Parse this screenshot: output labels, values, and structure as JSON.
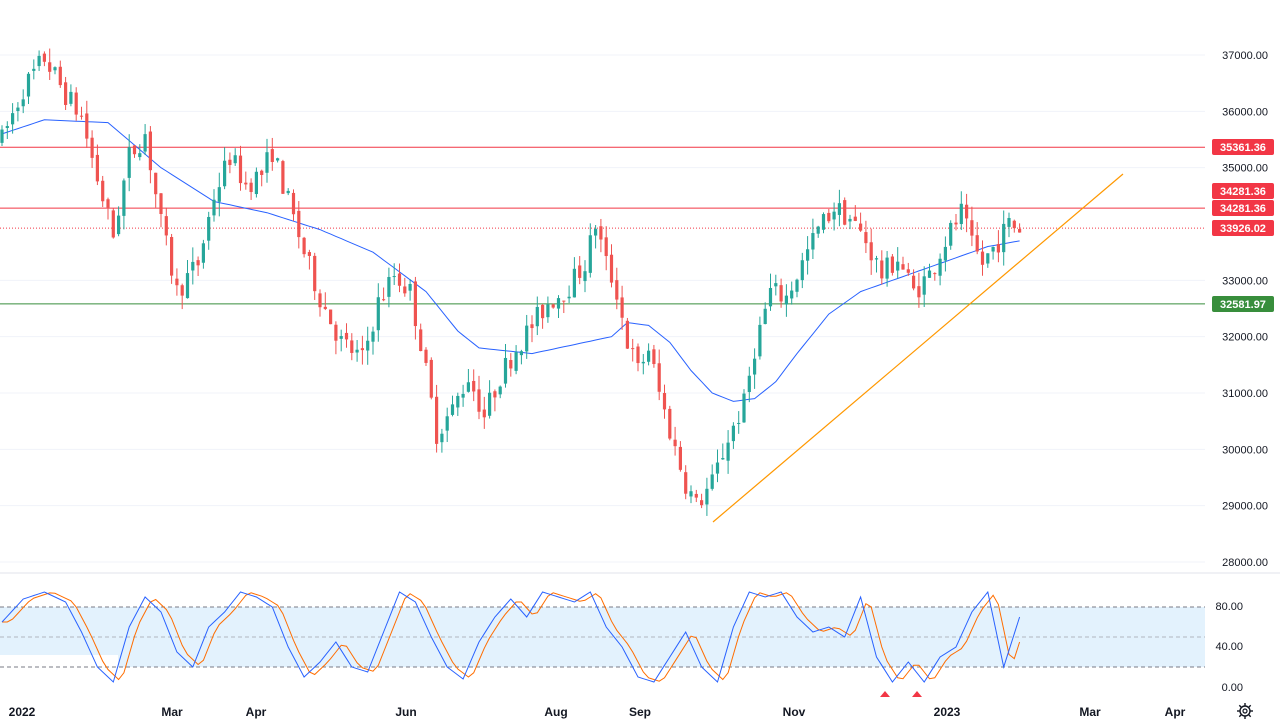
{
  "chart_data": {
    "type": "candlestick",
    "instrument_note": "daily price chart with 50-day moving average, trend lines and stochastic oscillator",
    "colors": {
      "up": "#26a69a",
      "down": "#ef5350",
      "ma": "#2962ff",
      "trendline": "#ff9800",
      "resistance": "#f23645",
      "support": "#388e3c",
      "stoch_k": "#2962ff",
      "stoch_d": "#ff6d00",
      "stoch_band": "#e3f2fd"
    },
    "price_axis": {
      "ticks": [
        "37000.00",
        "36000.00",
        "35000.00",
        "33000.00",
        "32000.00",
        "31000.00",
        "30000.00",
        "29000.00",
        "28000.00"
      ],
      "tick_values": [
        37000,
        36000,
        35000,
        33000,
        32000,
        31000,
        30000,
        29000,
        28000
      ],
      "range": [
        27800,
        37500
      ]
    },
    "x_axis": {
      "labels": [
        "2022",
        "Mar",
        "Apr",
        "Jun",
        "Aug",
        "Sep",
        "Nov",
        "2023",
        "Mar",
        "Apr"
      ],
      "label_pos": [
        0.0,
        0.3,
        0.5,
        0.8,
        1.2,
        1.4,
        1.7,
        2.0,
        2.3,
        2.5
      ]
    },
    "levels": [
      {
        "label": "35361.36",
        "value": 35361.36,
        "color": "#f23645",
        "style": "solid"
      },
      {
        "label": "34281.36",
        "value": 34281.36,
        "color": "#f23645",
        "style": "solid"
      },
      {
        "label": "34281.36",
        "value": 34281.36,
        "color": "#f23645",
        "style": "tag-only"
      },
      {
        "label": "33926.02",
        "value": 33926.02,
        "color": "#f23645",
        "style": "dotted"
      },
      {
        "label": "32581.97",
        "value": 32581.97,
        "color": "#388e3c",
        "style": "solid"
      }
    ],
    "trendline": {
      "from": [
        0.0,
        0.0
      ],
      "to": [
        0.0,
        0.0
      ]
    },
    "candle_path": [
      [
        0,
        35500
      ],
      [
        4,
        36400
      ],
      [
        8,
        36950
      ],
      [
        12,
        36300
      ],
      [
        15,
        35900
      ],
      [
        18,
        34800
      ],
      [
        21,
        33800
      ],
      [
        24,
        35200
      ],
      [
        27,
        35600
      ],
      [
        30,
        34000
      ],
      [
        33,
        32800
      ],
      [
        37,
        33300
      ],
      [
        40,
        34500
      ],
      [
        43,
        35200
      ],
      [
        46,
        34700
      ],
      [
        49,
        34900
      ],
      [
        51,
        35300
      ],
      [
        54,
        34400
      ],
      [
        57,
        33500
      ],
      [
        60,
        32700
      ],
      [
        64,
        31900
      ],
      [
        68,
        31600
      ],
      [
        71,
        32600
      ],
      [
        74,
        33100
      ],
      [
        77,
        32800
      ],
      [
        79,
        31900
      ],
      [
        82,
        30300
      ],
      [
        85,
        30700
      ],
      [
        88,
        31300
      ],
      [
        91,
        30600
      ],
      [
        94,
        31300
      ],
      [
        97,
        31800
      ],
      [
        100,
        32200
      ],
      [
        103,
        32600
      ],
      [
        107,
        32900
      ],
      [
        110,
        33300
      ],
      [
        112,
        34000
      ],
      [
        114,
        33300
      ],
      [
        116,
        32800
      ],
      [
        118,
        31900
      ],
      [
        120,
        31400
      ],
      [
        122,
        31800
      ],
      [
        124,
        31000
      ],
      [
        127,
        30000
      ],
      [
        129,
        29400
      ],
      [
        131,
        29000
      ],
      [
        134,
        29400
      ],
      [
        137,
        30200
      ],
      [
        140,
        30800
      ],
      [
        142,
        31800
      ],
      [
        145,
        32800
      ],
      [
        148,
        32700
      ],
      [
        151,
        33300
      ],
      [
        154,
        33900
      ],
      [
        157,
        34300
      ],
      [
        160,
        34100
      ],
      [
        163,
        33700
      ],
      [
        166,
        33100
      ],
      [
        169,
        33400
      ],
      [
        172,
        32800
      ],
      [
        175,
        33100
      ],
      [
        178,
        33700
      ],
      [
        181,
        34200
      ],
      [
        183,
        33600
      ],
      [
        185,
        33300
      ],
      [
        188,
        33700
      ],
      [
        190,
        34000
      ],
      [
        192,
        33926
      ]
    ],
    "ma_path": [
      [
        0,
        35600
      ],
      [
        8,
        35850
      ],
      [
        20,
        35800
      ],
      [
        30,
        35000
      ],
      [
        40,
        34400
      ],
      [
        50,
        34200
      ],
      [
        60,
        33900
      ],
      [
        70,
        33500
      ],
      [
        80,
        32800
      ],
      [
        86,
        32100
      ],
      [
        90,
        31800
      ],
      [
        100,
        31700
      ],
      [
        110,
        31900
      ],
      [
        115,
        32000
      ],
      [
        118,
        32250
      ],
      [
        122,
        32200
      ],
      [
        126,
        31900
      ],
      [
        130,
        31400
      ],
      [
        134,
        31000
      ],
      [
        138,
        30850
      ],
      [
        142,
        30900
      ],
      [
        146,
        31200
      ],
      [
        150,
        31700
      ],
      [
        156,
        32400
      ],
      [
        162,
        32800
      ],
      [
        168,
        33000
      ],
      [
        174,
        33200
      ],
      [
        180,
        33400
      ],
      [
        186,
        33600
      ],
      [
        192,
        33700
      ]
    ],
    "stochastic": {
      "ticks": [
        "80.00",
        "40.00",
        "0.00"
      ],
      "tick_values": [
        80,
        40,
        0
      ],
      "band": [
        20,
        80
      ],
      "mid": 50,
      "k_path": [
        [
          0,
          65
        ],
        [
          4,
          88
        ],
        [
          8,
          95
        ],
        [
          12,
          85
        ],
        [
          15,
          55
        ],
        [
          18,
          20
        ],
        [
          21,
          5
        ],
        [
          24,
          60
        ],
        [
          27,
          90
        ],
        [
          30,
          75
        ],
        [
          33,
          35
        ],
        [
          36,
          20
        ],
        [
          39,
          60
        ],
        [
          42,
          75
        ],
        [
          45,
          95
        ],
        [
          48,
          90
        ],
        [
          51,
          80
        ],
        [
          54,
          40
        ],
        [
          57,
          10
        ],
        [
          60,
          25
        ],
        [
          63,
          45
        ],
        [
          66,
          20
        ],
        [
          69,
          15
        ],
        [
          72,
          55
        ],
        [
          75,
          95
        ],
        [
          78,
          85
        ],
        [
          81,
          50
        ],
        [
          84,
          20
        ],
        [
          87,
          8
        ],
        [
          90,
          45
        ],
        [
          93,
          70
        ],
        [
          96,
          88
        ],
        [
          99,
          70
        ],
        [
          102,
          95
        ],
        [
          105,
          90
        ],
        [
          108,
          85
        ],
        [
          111,
          95
        ],
        [
          114,
          60
        ],
        [
          117,
          40
        ],
        [
          120,
          10
        ],
        [
          123,
          5
        ],
        [
          126,
          30
        ],
        [
          129,
          55
        ],
        [
          132,
          20
        ],
        [
          135,
          5
        ],
        [
          138,
          60
        ],
        [
          141,
          95
        ],
        [
          144,
          90
        ],
        [
          147,
          95
        ],
        [
          150,
          70
        ],
        [
          153,
          55
        ],
        [
          156,
          60
        ],
        [
          159,
          50
        ],
        [
          162,
          90
        ],
        [
          165,
          30
        ],
        [
          168,
          5
        ],
        [
          171,
          25
        ],
        [
          174,
          5
        ],
        [
          177,
          30
        ],
        [
          180,
          40
        ],
        [
          183,
          75
        ],
        [
          186,
          95
        ],
        [
          189,
          20
        ],
        [
          192,
          70
        ]
      ],
      "markers": [
        185,
        187
      ]
    }
  }
}
